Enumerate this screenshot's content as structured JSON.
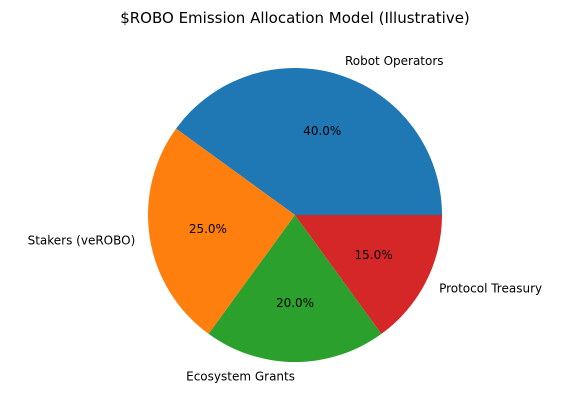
{
  "chart_data": {
    "type": "pie",
    "title": "$ROBO Emission Allocation Model (Illustrative)",
    "slices": [
      {
        "label": "Robot Operators",
        "value": 40,
        "pct_label": "40.0%",
        "color": "#1f77b4"
      },
      {
        "label": "Stakers (veROBO)",
        "value": 25,
        "pct_label": "25.0%",
        "color": "#ff7f0e"
      },
      {
        "label": "Ecosystem Grants",
        "value": 20,
        "pct_label": "20.0%",
        "color": "#2ca02c"
      },
      {
        "label": "Protocol Treasury",
        "value": 15,
        "pct_label": "15.0%",
        "color": "#d62728"
      }
    ],
    "start_angle_deg": 0,
    "direction": "counterclockwise",
    "legend": "none"
  }
}
